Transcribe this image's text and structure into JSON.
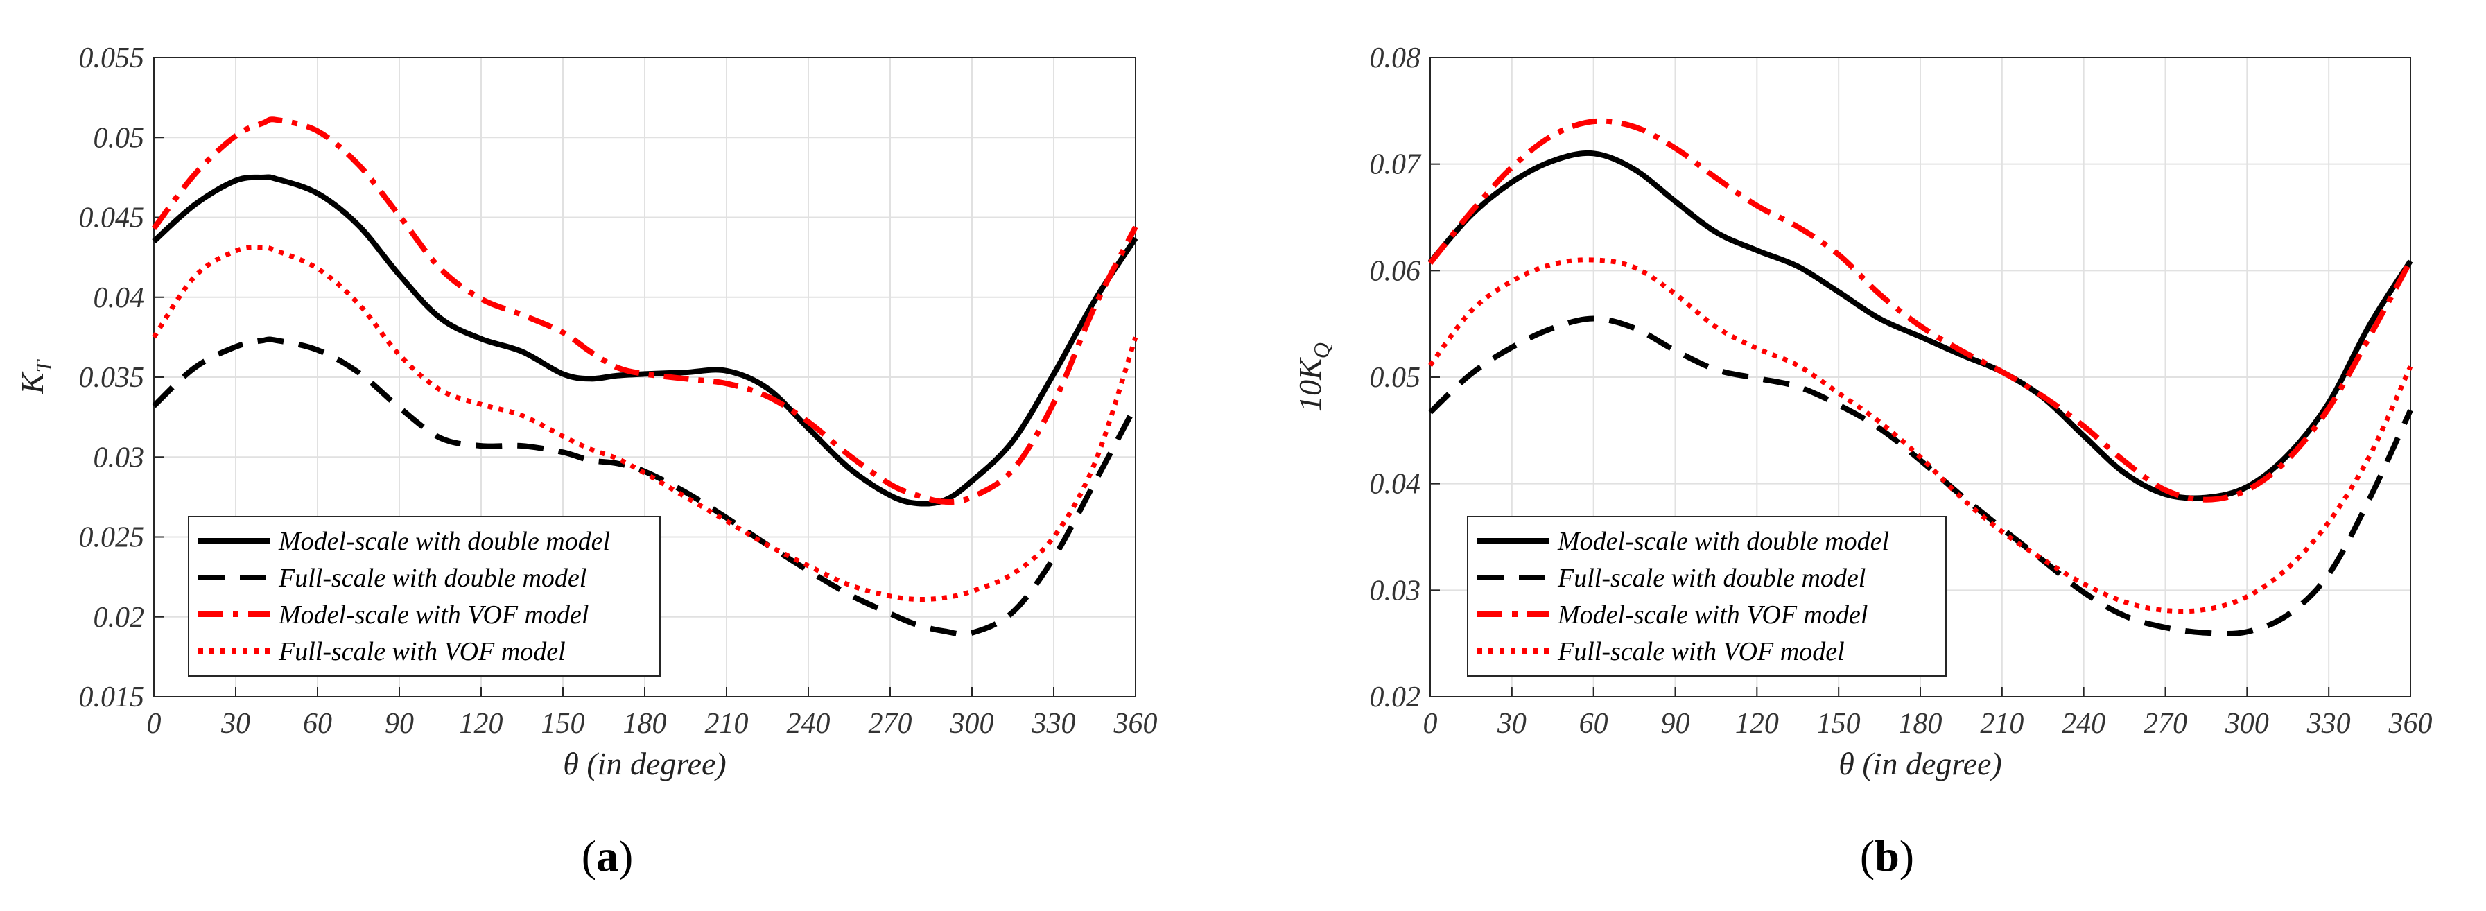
{
  "panels": [
    {
      "id": "a",
      "caption_open": "(",
      "caption_letter": "a",
      "caption_close": ")"
    },
    {
      "id": "b",
      "caption_open": "(",
      "caption_letter": "b",
      "caption_close": ")"
    }
  ],
  "chart_data": [
    {
      "type": "line",
      "title": "",
      "xlabel": "θ (in degree)",
      "ylabel": "K",
      "ylabel_subscript": "T",
      "xlim": [
        0,
        360
      ],
      "ylim": [
        0.015,
        0.055
      ],
      "xticks": [
        0,
        30,
        60,
        90,
        120,
        150,
        180,
        210,
        240,
        270,
        300,
        330,
        360
      ],
      "xtick_labels": [
        "0",
        "30",
        "60",
        "90",
        "120",
        "150",
        "180",
        "210",
        "240",
        "270",
        "300",
        "330",
        "360"
      ],
      "yticks": [
        0.015,
        0.02,
        0.025,
        0.03,
        0.035,
        0.04,
        0.045,
        0.05,
        0.055
      ],
      "ytick_labels": [
        "0.015",
        "0.02",
        "0.025",
        "0.03",
        "0.035",
        "0.04",
        "0.045",
        "0.05",
        "0.055"
      ],
      "grid": true,
      "legend_position": "bottom-left",
      "x": [
        0,
        15,
        30,
        40,
        45,
        60,
        75,
        90,
        105,
        120,
        135,
        150,
        160,
        170,
        180,
        195,
        210,
        225,
        240,
        255,
        270,
        280,
        290,
        300,
        315,
        330,
        345,
        360
      ],
      "series": [
        {
          "name": "Model-scale with double model",
          "color": "#000000",
          "style": "solid",
          "values": [
            0.0435,
            0.0458,
            0.0473,
            0.0475,
            0.0474,
            0.0465,
            0.0445,
            0.0414,
            0.0387,
            0.0374,
            0.0366,
            0.0352,
            0.0349,
            0.0351,
            0.0352,
            0.0353,
            0.0354,
            0.0343,
            0.0318,
            0.0293,
            0.0276,
            0.0271,
            0.0273,
            0.0285,
            0.031,
            0.0352,
            0.0398,
            0.0437
          ]
        },
        {
          "name": "Full-scale with double model",
          "color": "#000000",
          "style": "dashed",
          "values": [
            0.0332,
            0.0356,
            0.0369,
            0.0373,
            0.0373,
            0.0367,
            0.0353,
            0.0331,
            0.0312,
            0.0307,
            0.0307,
            0.0303,
            0.0298,
            0.0296,
            0.0291,
            0.0278,
            0.0262,
            0.0245,
            0.0229,
            0.0214,
            0.0202,
            0.0195,
            0.0191,
            0.019,
            0.0203,
            0.0237,
            0.0284,
            0.0332
          ]
        },
        {
          "name": "Model-scale with VOF model",
          "color": "#ff0000",
          "style": "dashdot",
          "values": [
            0.0443,
            0.0477,
            0.0501,
            0.0509,
            0.0511,
            0.0504,
            0.0483,
            0.0451,
            0.0418,
            0.0399,
            0.0389,
            0.0378,
            0.0366,
            0.0356,
            0.0352,
            0.0349,
            0.0346,
            0.0338,
            0.0322,
            0.0301,
            0.0283,
            0.0276,
            0.0272,
            0.0275,
            0.0292,
            0.0334,
            0.0394,
            0.0444
          ]
        },
        {
          "name": "Full-scale with VOF model",
          "color": "#ff0000",
          "style": "dotted",
          "values": [
            0.0375,
            0.0413,
            0.0429,
            0.0431,
            0.0429,
            0.0418,
            0.0396,
            0.0364,
            0.0342,
            0.0333,
            0.0326,
            0.0313,
            0.0305,
            0.0299,
            0.029,
            0.0275,
            0.026,
            0.0245,
            0.0232,
            0.022,
            0.0213,
            0.0211,
            0.0212,
            0.0216,
            0.0227,
            0.025,
            0.0296,
            0.0375
          ]
        }
      ]
    },
    {
      "type": "line",
      "title": "",
      "xlabel": "θ (in degree)",
      "ylabel": "10K",
      "ylabel_subscript": "Q",
      "xlim": [
        0,
        360
      ],
      "ylim": [
        0.02,
        0.08
      ],
      "xticks": [
        0,
        30,
        60,
        90,
        120,
        150,
        180,
        210,
        240,
        270,
        300,
        330,
        360
      ],
      "xtick_labels": [
        "0",
        "30",
        "60",
        "90",
        "120",
        "150",
        "180",
        "210",
        "240",
        "270",
        "300",
        "330",
        "360"
      ],
      "yticks": [
        0.02,
        0.03,
        0.04,
        0.05,
        0.06,
        0.07,
        0.08
      ],
      "ytick_labels": [
        "0.02",
        "0.03",
        "0.04",
        "0.05",
        "0.06",
        "0.07",
        "0.08"
      ],
      "grid": true,
      "legend_position": "bottom-left",
      "x": [
        0,
        15,
        30,
        45,
        60,
        75,
        90,
        105,
        120,
        135,
        150,
        165,
        180,
        195,
        210,
        225,
        240,
        255,
        270,
        285,
        300,
        315,
        330,
        345,
        360
      ],
      "series": [
        {
          "name": "Model-scale with double model",
          "color": "#000000",
          "style": "solid",
          "values": [
            0.0608,
            0.0652,
            0.0683,
            0.0703,
            0.071,
            0.0695,
            0.0665,
            0.0636,
            0.0619,
            0.0604,
            0.058,
            0.0555,
            0.0538,
            0.0521,
            0.0505,
            0.0481,
            0.0445,
            0.041,
            0.039,
            0.0387,
            0.0397,
            0.0427,
            0.0476,
            0.0549,
            0.0609
          ]
        },
        {
          "name": "Full-scale with double model",
          "color": "#000000",
          "style": "dashed",
          "values": [
            0.0467,
            0.0503,
            0.0528,
            0.0546,
            0.0555,
            0.0546,
            0.0525,
            0.0507,
            0.0499,
            0.0491,
            0.0474,
            0.0452,
            0.0422,
            0.0389,
            0.0358,
            0.0328,
            0.0298,
            0.0276,
            0.0265,
            0.026,
            0.0261,
            0.0277,
            0.0315,
            0.0386,
            0.0469
          ]
        },
        {
          "name": "Model-scale with VOF model",
          "color": "#ff0000",
          "style": "dashdot",
          "values": [
            0.0607,
            0.0655,
            0.0697,
            0.0727,
            0.074,
            0.0735,
            0.0715,
            0.0687,
            0.0661,
            0.0641,
            0.0615,
            0.0578,
            0.0548,
            0.0525,
            0.0505,
            0.0482,
            0.0454,
            0.0421,
            0.0394,
            0.0385,
            0.0394,
            0.0423,
            0.0471,
            0.0538,
            0.0609
          ]
        },
        {
          "name": "Full-scale with VOF model",
          "color": "#ff0000",
          "style": "dotted",
          "values": [
            0.0511,
            0.0562,
            0.059,
            0.0606,
            0.061,
            0.0603,
            0.0578,
            0.0547,
            0.0527,
            0.0511,
            0.0485,
            0.0458,
            0.0425,
            0.0387,
            0.0355,
            0.0329,
            0.0306,
            0.0289,
            0.0281,
            0.0282,
            0.0294,
            0.0321,
            0.0364,
            0.0426,
            0.051
          ]
        }
      ]
    }
  ]
}
